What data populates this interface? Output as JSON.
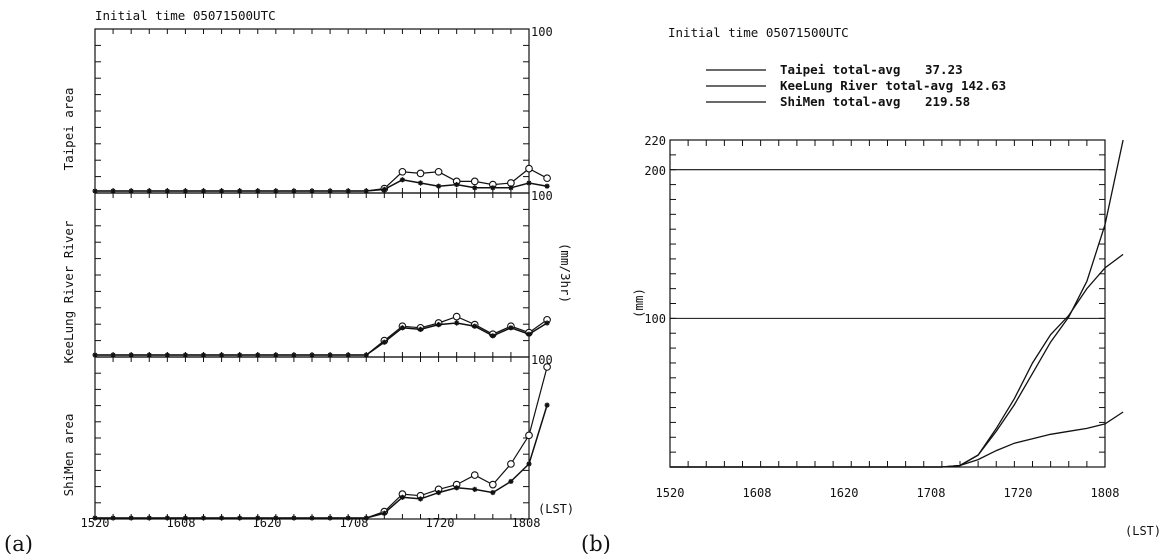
{
  "figure": {
    "panel_a_label": "(a)",
    "panel_b_label": "(b)"
  },
  "chart_data": [
    {
      "type": "line",
      "panel": "(a)",
      "title": "Initial time 05071500UTC",
      "x_tick_labels": [
        "1520",
        "1608",
        "1620",
        "1708",
        "1720",
        "1808"
      ],
      "xlabel": "(LST)",
      "ylabel": "(mm/3hr)",
      "x_steps": 24,
      "subplots": [
        {
          "name": "Taipei area",
          "ylim": [
            0,
            100
          ],
          "top_label": "100",
          "series": [
            {
              "marker": "circle",
              "values": [
                0,
                0,
                0,
                0,
                0,
                0,
                0,
                0,
                0,
                0,
                0,
                0,
                0,
                0,
                0,
                0,
                1.5,
                12,
                11,
                12,
                6,
                6,
                4,
                5,
                14,
                8
              ]
            },
            {
              "marker": "star",
              "values": [
                0,
                0,
                0,
                0,
                0,
                0,
                0,
                0,
                0,
                0,
                0,
                0,
                0,
                0,
                0,
                0,
                1,
                7,
                5,
                3,
                4,
                2,
                2,
                2,
                5,
                3
              ]
            }
          ]
        },
        {
          "name": "KeeLung River River",
          "ylim": [
            0,
            100
          ],
          "top_label": "100",
          "series": [
            {
              "marker": "circle",
              "values": [
                0,
                0,
                0,
                0,
                0,
                0,
                0,
                0,
                0,
                0,
                0,
                0,
                0,
                0,
                0,
                0,
                9,
                18,
                17,
                20,
                24,
                19,
                13,
                18,
                14,
                22
              ]
            },
            {
              "marker": "star",
              "values": [
                0,
                0,
                0,
                0,
                0,
                0,
                0,
                0,
                0,
                0,
                0,
                0,
                0,
                0,
                0,
                0,
                8,
                17,
                16,
                19,
                20,
                18,
                12,
                17,
                13,
                20
              ]
            }
          ]
        },
        {
          "name": "ShiMen area",
          "ylim": [
            0,
            100
          ],
          "top_label": "100",
          "series": [
            {
              "marker": "circle",
              "values": [
                0,
                0,
                0,
                0,
                0,
                0,
                0,
                0,
                0,
                0,
                0,
                0,
                0,
                0,
                0,
                0,
                4,
                15,
                14,
                18,
                21,
                27,
                21,
                34,
                52,
                95
              ]
            },
            {
              "marker": "star",
              "values": [
                0,
                0,
                0,
                0,
                0,
                0,
                0,
                0,
                0,
                0,
                0,
                0,
                0,
                0,
                0,
                0,
                3,
                13,
                12,
                16,
                19,
                18,
                16,
                23,
                34,
                71
              ]
            }
          ]
        }
      ]
    },
    {
      "type": "line",
      "panel": "(b)",
      "title": "Initial time 05071500UTC",
      "xlabel": "(LST)",
      "ylabel": "(mm)",
      "ylim": [
        0,
        220
      ],
      "x_tick_labels": [
        "1520",
        "1608",
        "1620",
        "1708",
        "1720",
        "1808"
      ],
      "y_tick_labels": [
        "100",
        "200",
        "220"
      ],
      "x_steps": 24,
      "grid": "horizontal lines at 100 and 200",
      "legend_position": "top",
      "series": [
        {
          "name": "Taipei total-avg",
          "total": "37.23",
          "values": [
            0,
            0,
            0,
            0,
            0,
            0,
            0,
            0,
            0,
            0,
            0,
            0,
            0,
            0,
            0,
            0,
            1,
            5,
            11,
            16,
            19,
            22,
            24,
            26,
            29,
            37
          ]
        },
        {
          "name": "KeeLung River total-avg",
          "total": "142.63",
          "values": [
            0,
            0,
            0,
            0,
            0,
            0,
            0,
            0,
            0,
            0,
            0,
            0,
            0,
            0,
            0,
            0,
            1,
            8,
            26,
            46,
            70,
            89,
            102,
            120,
            134,
            143
          ]
        },
        {
          "name": "ShiMen total-avg",
          "total": "219.58",
          "values": [
            0,
            0,
            0,
            0,
            0,
            0,
            0,
            0,
            0,
            0,
            0,
            0,
            0,
            0,
            0,
            0,
            1,
            8,
            24,
            42,
            63,
            84,
            101,
            125,
            163,
            220
          ]
        }
      ]
    }
  ]
}
